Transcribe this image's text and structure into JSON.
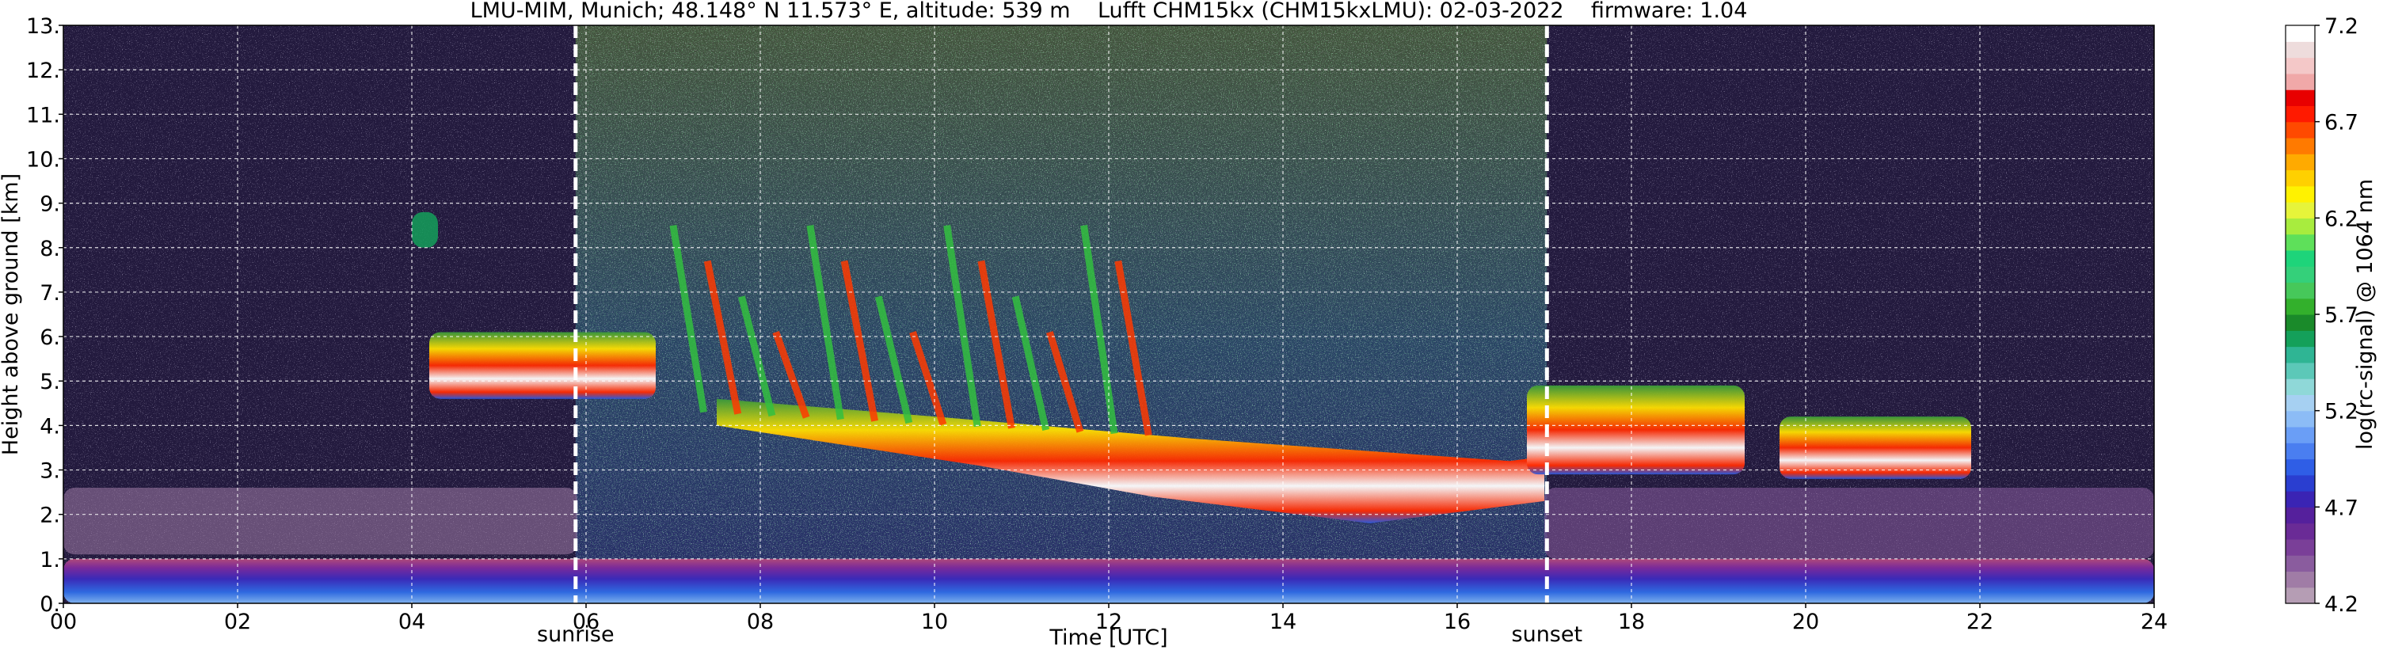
{
  "figure": {
    "title": "LMU-MIM, Munich; 48.148° N 11.573° E, altitude: 539 m    Lufft CHM15kx (CHM15kxLMU): 02-03-2022    firmware: 1.04"
  },
  "chart_data": {
    "type": "heatmap",
    "title": "LMU-MIM, Munich; 48.148° N 11.573° E, altitude: 539 m    Lufft CHM15kx (CHM15kxLMU): 02-03-2022    firmware: 1.04",
    "xlabel": "Time [UTC]",
    "ylabel": "Height above ground [km]",
    "xlim": [
      0,
      24
    ],
    "ylim": [
      0,
      13
    ],
    "x_ticks": [
      0,
      2,
      4,
      6,
      8,
      10,
      12,
      14,
      16,
      18,
      20,
      22,
      24
    ],
    "x_tick_labels": [
      "00",
      "02",
      "04",
      "06",
      "08",
      "10",
      "12",
      "14",
      "16",
      "18",
      "20",
      "22",
      "24"
    ],
    "y_ticks": [
      0,
      1,
      2,
      3,
      4,
      5,
      6,
      7,
      8,
      9,
      10,
      11,
      12,
      13
    ],
    "y_tick_labels": [
      "0.",
      "1.",
      "2.",
      "3.",
      "4.",
      "5.",
      "6.",
      "7.",
      "8.",
      "9.",
      "10.",
      "11.",
      "12.",
      "13."
    ],
    "grid": true,
    "markers": [
      {
        "label": "sunrise",
        "x": 5.88
      },
      {
        "label": "sunset",
        "x": 17.03
      }
    ],
    "colorbar": {
      "label": "log(rc-signal) @ 1064 nm",
      "range": [
        4.2,
        7.2
      ],
      "tick_values": [
        4.2,
        4.7,
        5.2,
        5.7,
        6.2,
        6.7,
        7.2
      ],
      "tick_labels": [
        "4.2",
        "4.7",
        "5.2",
        "5.7",
        "6.2",
        "6.7",
        "7.2"
      ],
      "colors": [
        "#b59db4",
        "#a07ca6",
        "#8a5c9e",
        "#7a3f98",
        "#6a2b96",
        "#55209c",
        "#3a24b4",
        "#2a3ed0",
        "#2f5ee6",
        "#4a7ef0",
        "#6a9ef6",
        "#8cbcf6",
        "#a6d0f2",
        "#8fd8d8",
        "#5cc8b8",
        "#2fb594",
        "#14a05a",
        "#1a8a2a",
        "#33b02c",
        "#46c85a",
        "#34d07a",
        "#1ed47a",
        "#5ee05a",
        "#a8ec3e",
        "#e6f43a",
        "#fff200",
        "#ffd000",
        "#ffaa00",
        "#ff7a00",
        "#ff4a00",
        "#ff1a00",
        "#e80000",
        "#f0a8a8",
        "#f4c8c8",
        "#eedcdc",
        "#ffffff"
      ]
    },
    "features": [
      {
        "name": "aerosol layer",
        "x_range": [
          0,
          24
        ],
        "y_range": [
          0,
          1.0
        ],
        "value": 4.8
      },
      {
        "name": "residual layer",
        "x_range": [
          0,
          5.9
        ],
        "y_range": [
          1.1,
          2.6
        ],
        "value": 4.3
      },
      {
        "name": "cloud",
        "x_range": [
          4.2,
          6.8
        ],
        "y_range": [
          4.6,
          6.1
        ],
        "value": 6.6
      },
      {
        "name": "cirrus streak",
        "x_range": [
          4.0,
          4.3
        ],
        "y_range": [
          8.0,
          8.8
        ],
        "value": 5.6
      },
      {
        "name": "cloud base descending",
        "x_range": [
          7.5,
          17.0
        ],
        "y_range": [
          1.8,
          4.6
        ],
        "value": 7.0
      },
      {
        "name": "fall streaks",
        "x_range": [
          7.0,
          12.5
        ],
        "y_range": [
          3.8,
          8.5
        ],
        "value": 5.9
      },
      {
        "name": "evening cloud",
        "x_range": [
          16.8,
          19.3
        ],
        "y_range": [
          2.9,
          4.9
        ],
        "value": 6.6
      },
      {
        "name": "evening aerosol",
        "x_range": [
          17.0,
          24
        ],
        "y_range": [
          1.0,
          2.6
        ],
        "value": 4.4
      },
      {
        "name": "cloud",
        "x_range": [
          19.7,
          21.9
        ],
        "y_range": [
          2.8,
          4.2
        ],
        "value": 6.0
      }
    ]
  }
}
